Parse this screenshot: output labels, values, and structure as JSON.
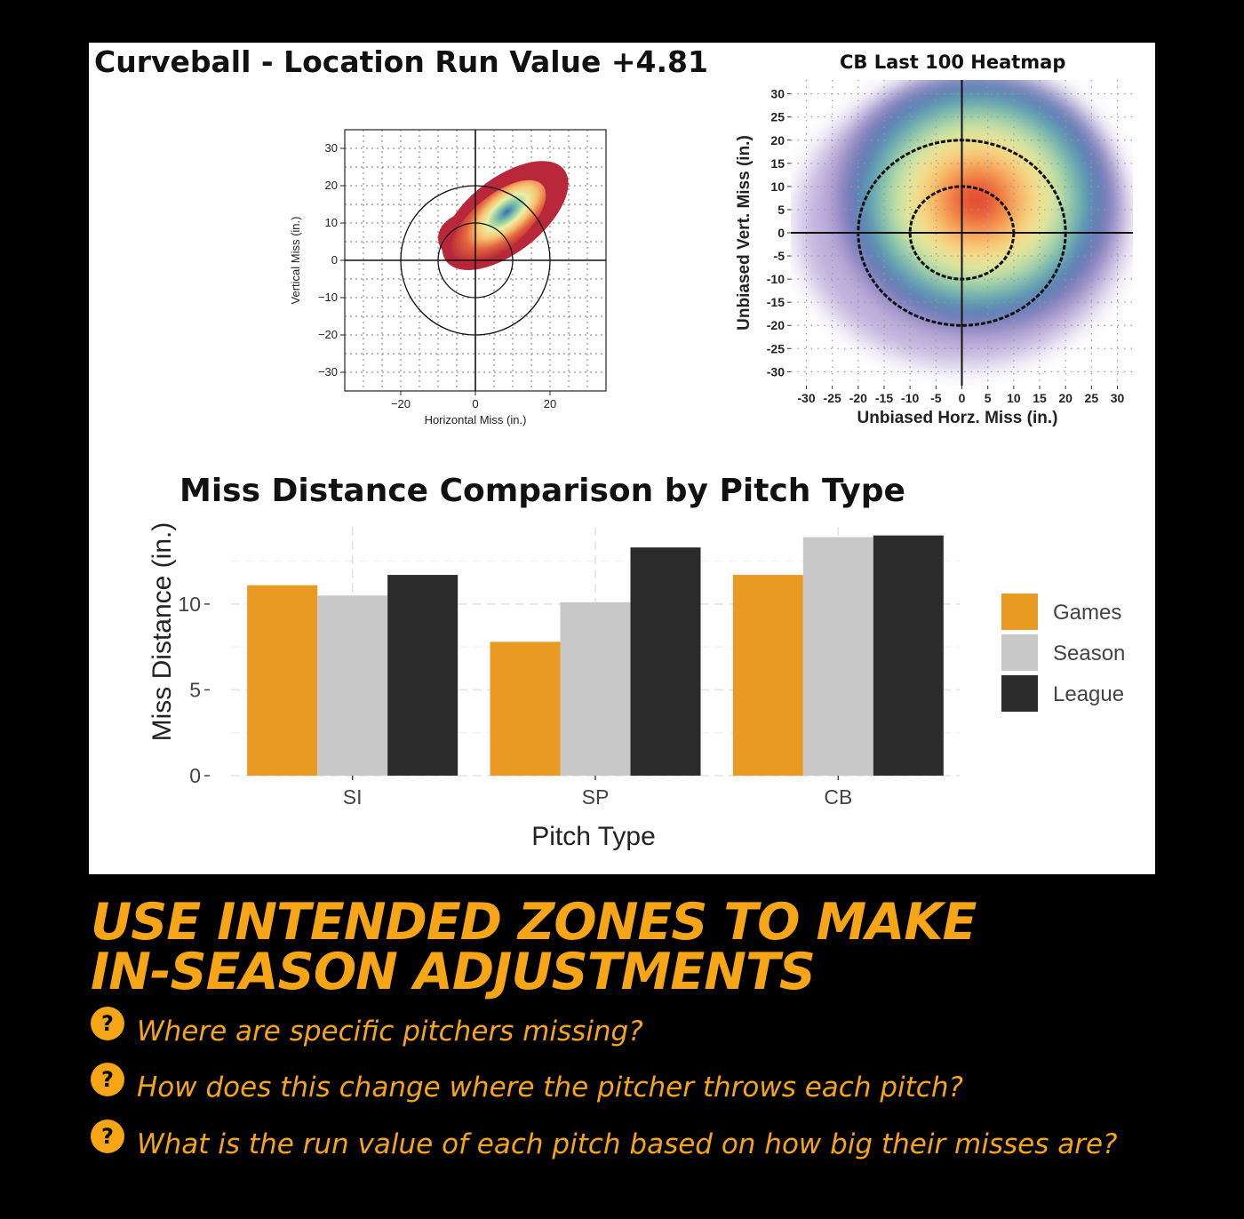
{
  "chart_data": [
    {
      "type": "kde-contour",
      "title": "Curveball - Location Run Value +4.81",
      "xlabel": "Horizontal Miss (in.)",
      "ylabel": "Vertical Miss (in.)",
      "xlim": [
        -35,
        35
      ],
      "ylim": [
        -35,
        35
      ],
      "xticks": [
        "−20",
        "0",
        "20"
      ],
      "xtick_values": [
        -20,
        0,
        20
      ],
      "yticks": [
        "30",
        "20",
        "10",
        "0",
        "−10",
        "−20",
        "−30"
      ],
      "ytick_values": [
        30,
        20,
        10,
        0,
        -10,
        -20,
        -30
      ],
      "zone_circles_radius": [
        10,
        20
      ],
      "density_peak": [
        8,
        10
      ],
      "grid": true
    },
    {
      "type": "heatmap",
      "title": "CB Last 100 Heatmap",
      "xlabel": "Unbiased Horz. Miss (in.)",
      "ylabel": "Unbiased Vert. Miss (in.)",
      "xlim": [
        -33,
        33
      ],
      "ylim": [
        -33,
        33
      ],
      "xticks": [
        "-30",
        "-25",
        "-20",
        "-15",
        "-10",
        "-5",
        "0",
        "5",
        "10",
        "15",
        "20",
        "25",
        "30"
      ],
      "xtick_values": [
        -30,
        -25,
        -20,
        -15,
        -10,
        -5,
        0,
        5,
        10,
        15,
        20,
        25,
        30
      ],
      "yticks": [
        "30",
        "25",
        "20",
        "15",
        "10",
        "5",
        "0",
        "-5",
        "-10",
        "-15",
        "-20",
        "-25",
        "-30"
      ],
      "ytick_values": [
        30,
        25,
        20,
        15,
        10,
        5,
        0,
        -5,
        -10,
        -15,
        -20,
        -25,
        -30
      ],
      "zone_circles_radius": [
        10,
        20
      ],
      "density_peak": [
        3,
        7
      ],
      "grid": true
    },
    {
      "type": "bar",
      "title": "Miss Distance Comparison by Pitch Type",
      "xlabel": "Pitch Type",
      "ylabel": "Miss Distance (in.)",
      "categories": [
        "SI",
        "SP",
        "CB"
      ],
      "ylim": [
        0,
        14.5
      ],
      "yticks": [
        "0",
        "5",
        "10"
      ],
      "ytick_values": [
        0,
        5,
        10
      ],
      "series": [
        {
          "name": "Games",
          "values": [
            11.1,
            7.8,
            11.7
          ],
          "color": "#e99a22"
        },
        {
          "name": "Season",
          "values": [
            10.5,
            10.1,
            13.9
          ],
          "color": "#c8c8c8"
        },
        {
          "name": "League",
          "values": [
            11.7,
            13.3,
            14.0
          ],
          "color": "#2b2b2b"
        }
      ],
      "legend": "right"
    }
  ],
  "headline": [
    "USE INTENDED ZONES TO MAKE",
    "IN-SEASON ADJUSTMENTS"
  ],
  "questions": [
    "Where are specific pitchers missing?",
    "How does this change where the pitcher throws each pitch?",
    "What is the run value of each pitch based on how big their misses are?"
  ],
  "question_icon": "?",
  "colors": {
    "accent": "#f5a516",
    "background": "#000000",
    "panel": "#ffffff"
  }
}
